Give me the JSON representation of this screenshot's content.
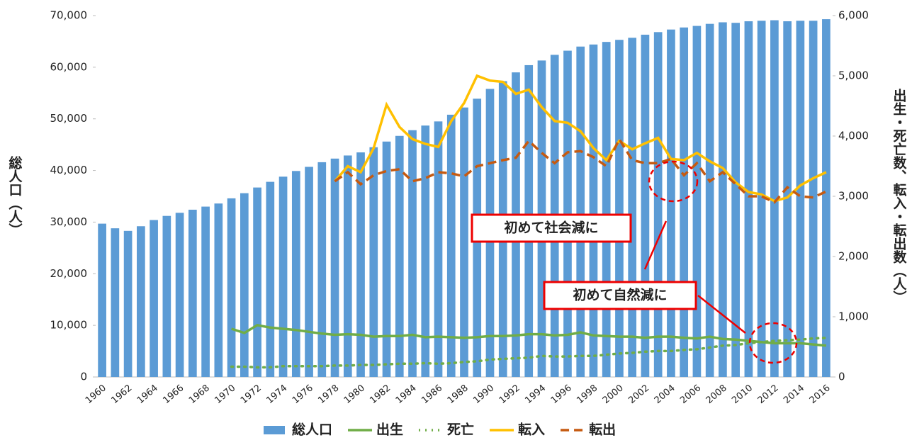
{
  "chart_data": {
    "type": "bar",
    "y_label": "総人口（人）",
    "y2_label": "出生・死亡数、転入・転出数（人）",
    "annotations": [
      "初めて社会減に",
      "初めて自然減に"
    ],
    "categories": [
      "1960",
      null,
      "1962",
      null,
      "1964",
      null,
      "1966",
      null,
      "1968",
      null,
      "1970",
      null,
      "1972",
      null,
      "1974",
      null,
      "1976",
      null,
      "1978",
      null,
      "1980",
      null,
      "1982",
      null,
      "1984",
      null,
      "1986",
      null,
      "1988",
      null,
      "1990",
      null,
      "1992",
      null,
      "1994",
      null,
      "1996",
      null,
      "1998",
      null,
      "2000",
      null,
      "2002",
      null,
      "2004",
      null,
      "2006",
      null,
      "2008",
      null,
      "2010",
      null,
      "2012",
      null,
      "2014",
      null,
      "2016"
    ],
    "series": [
      {
        "name": "総人口",
        "type": "bar",
        "color": "#5b9bd5",
        "values": [
          29700,
          28800,
          28300,
          29200,
          30400,
          31200,
          31800,
          32400,
          33000,
          33600,
          34600,
          35600,
          36700,
          37800,
          38800,
          39900,
          40700,
          41600,
          42300,
          42900,
          43500,
          44500,
          45600,
          46700,
          47800,
          48700,
          49500,
          50800,
          52200,
          53900,
          55800,
          57300,
          59000,
          60400,
          61300,
          62400,
          63200,
          64000,
          64400,
          64900,
          65300,
          65700,
          66300,
          66800,
          67300,
          67700,
          68000,
          68400,
          68700,
          68600,
          68900,
          69000,
          69100,
          68900,
          69000,
          69000,
          69300
        ]
      },
      {
        "name": "出生",
        "type": "line",
        "axis": "y2",
        "color": "#70ad47",
        "dash": "solid",
        "values": [
          null,
          null,
          null,
          null,
          null,
          null,
          null,
          null,
          null,
          null,
          800,
          730,
          860,
          820,
          800,
          780,
          750,
          720,
          700,
          710,
          700,
          670,
          680,
          680,
          700,
          660,
          670,
          660,
          650,
          660,
          680,
          680,
          690,
          710,
          710,
          690,
          700,
          740,
          690,
          680,
          670,
          670,
          650,
          670,
          670,
          650,
          640,
          670,
          630,
          620,
          600,
          580,
          560,
          560,
          560,
          540,
          520
        ]
      },
      {
        "name": "死亡",
        "type": "line",
        "axis": "y2",
        "color": "#70ad47",
        "dash": "dotted",
        "values": [
          null,
          null,
          null,
          null,
          null,
          null,
          null,
          null,
          null,
          null,
          170,
          170,
          160,
          160,
          180,
          180,
          180,
          180,
          190,
          190,
          200,
          200,
          210,
          220,
          220,
          230,
          220,
          230,
          250,
          260,
          290,
          300,
          310,
          320,
          350,
          340,
          340,
          350,
          350,
          370,
          390,
          400,
          420,
          430,
          430,
          450,
          460,
          490,
          520,
          530,
          560,
          580,
          600,
          610,
          620,
          640,
          650
        ]
      },
      {
        "name": "転入",
        "type": "line",
        "axis": "y2",
        "color": "#ffc000",
        "dash": "solid",
        "values": [
          null,
          null,
          null,
          null,
          null,
          null,
          null,
          null,
          null,
          null,
          null,
          null,
          null,
          null,
          null,
          null,
          null,
          null,
          3250,
          3500,
          3400,
          3800,
          4520,
          4150,
          3950,
          3870,
          3820,
          4250,
          4550,
          5000,
          4920,
          4900,
          4700,
          4770,
          4480,
          4250,
          4220,
          4080,
          3800,
          3600,
          3920,
          3780,
          3880,
          3970,
          3620,
          3600,
          3720,
          3580,
          3470,
          3230,
          3070,
          3030,
          2920,
          2980,
          3180,
          3300,
          3400
        ]
      },
      {
        "name": "転出",
        "type": "line",
        "axis": "y2",
        "color": "#c55a11",
        "dash": "dashed",
        "values": [
          null,
          null,
          null,
          null,
          null,
          null,
          null,
          null,
          null,
          null,
          null,
          null,
          null,
          null,
          null,
          null,
          null,
          null,
          3250,
          3400,
          3200,
          3350,
          3420,
          3450,
          3250,
          3300,
          3400,
          3380,
          3330,
          3500,
          3550,
          3600,
          3640,
          3920,
          3720,
          3550,
          3730,
          3750,
          3650,
          3500,
          3950,
          3600,
          3550,
          3550,
          3620,
          3350,
          3550,
          3250,
          3400,
          3200,
          3000,
          3000,
          2900,
          3150,
          3000,
          2980,
          3080
        ]
      }
    ],
    "ylim": [
      0,
      70000
    ],
    "yticks": [
      {
        "value": 0,
        "label": "0"
      },
      {
        "value": 10000,
        "label": "10,000"
      },
      {
        "value": 20000,
        "label": "20,000"
      },
      {
        "value": 30000,
        "label": "30,000"
      },
      {
        "value": 40000,
        "label": "40,000"
      },
      {
        "value": 50000,
        "label": "50,000"
      },
      {
        "value": 60000,
        "label": "60,000"
      },
      {
        "value": 70000,
        "label": "70,000"
      }
    ],
    "y2lim": [
      0,
      6000
    ],
    "y2ticks": [
      {
        "value": 0,
        "label": "0"
      },
      {
        "value": 1000,
        "label": "1,000"
      },
      {
        "value": 2000,
        "label": "2,000"
      },
      {
        "value": 3000,
        "label": "3,000"
      },
      {
        "value": 4000,
        "label": "4,000"
      },
      {
        "value": 5000,
        "label": "5,000"
      },
      {
        "value": 6000,
        "label": "6,000"
      }
    ],
    "legend": "bottom"
  }
}
